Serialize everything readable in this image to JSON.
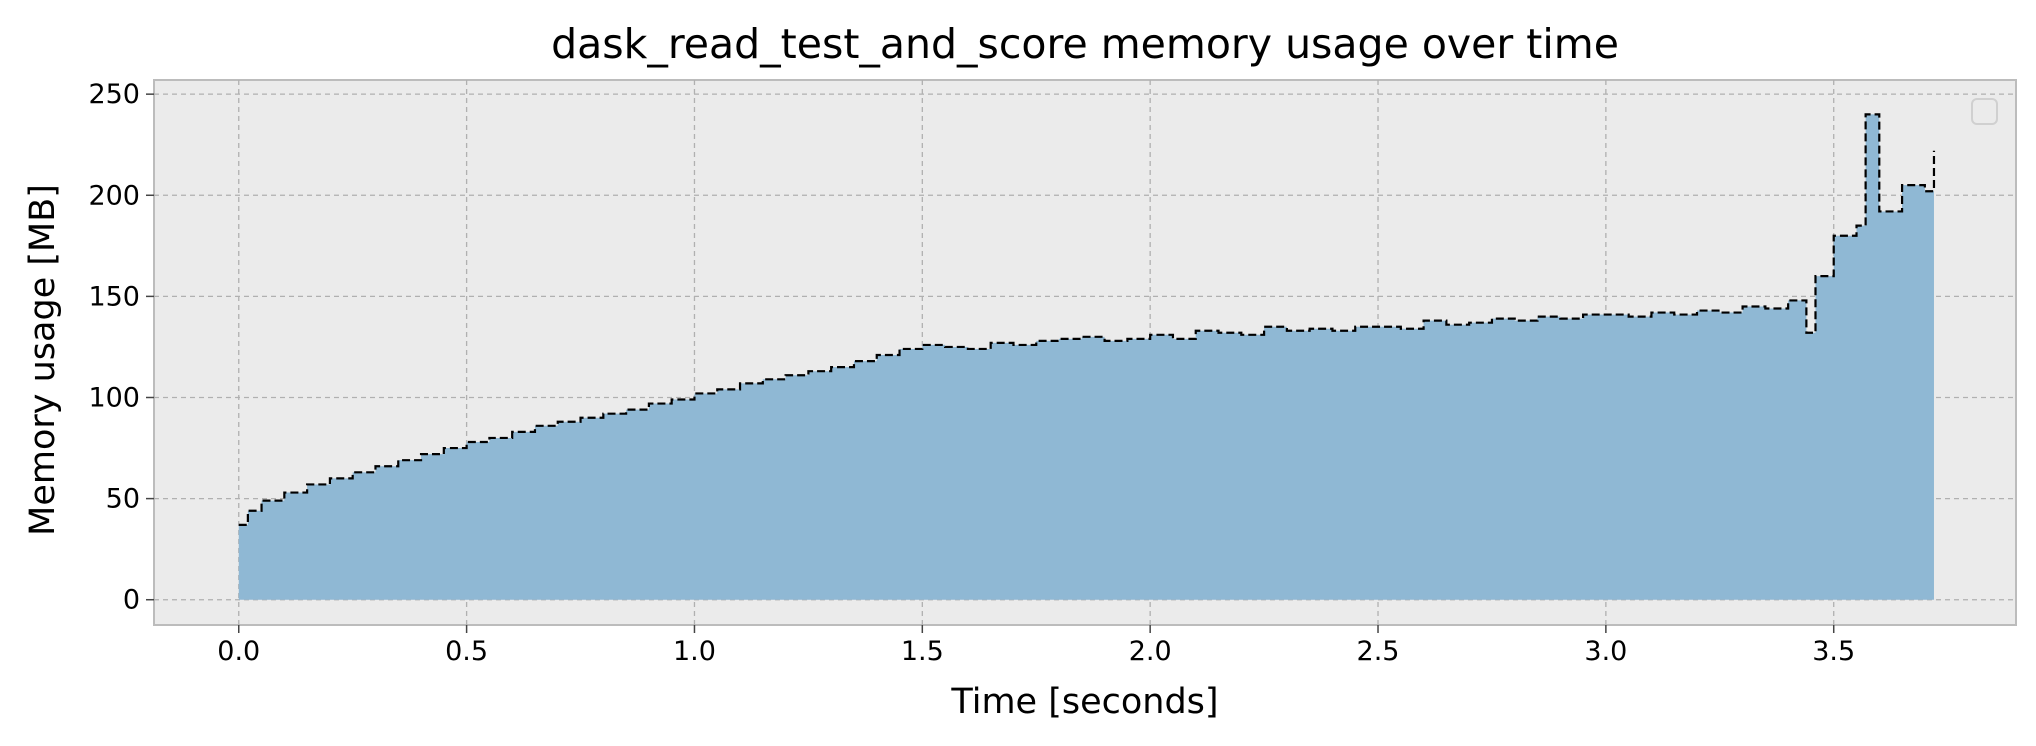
{
  "chart_data": {
    "type": "area",
    "title": "dask_read_test_and_score memory usage over time",
    "xlabel": "Time [seconds]",
    "ylabel": "Memory usage [MB]",
    "xlim": [
      -0.186,
      3.9
    ],
    "ylim": [
      -12.5,
      257
    ],
    "xticks": [
      "0.0",
      "0.5",
      "1.0",
      "1.5",
      "2.0",
      "2.5",
      "3.0",
      "3.5"
    ],
    "yticks": [
      "0",
      "50",
      "100",
      "150",
      "200",
      "250"
    ],
    "grid": true,
    "legend": "top-right (empty)",
    "colors": {
      "fill": "#8fb8d4",
      "line": "#000000",
      "background": "#ebebeb",
      "grid": "#b0b0b0",
      "frame": "#bcbcbc"
    },
    "series": [
      {
        "x": [
          0.0,
          0.02,
          0.05,
          0.1,
          0.15,
          0.2,
          0.25,
          0.3,
          0.35,
          0.4,
          0.45,
          0.5,
          0.55,
          0.6,
          0.65,
          0.7,
          0.75,
          0.8,
          0.85,
          0.9,
          0.95,
          1.0,
          1.05,
          1.1,
          1.15,
          1.2,
          1.25,
          1.3,
          1.35,
          1.4,
          1.45,
          1.5,
          1.55,
          1.6,
          1.65,
          1.7,
          1.75,
          1.8,
          1.85,
          1.9,
          1.95,
          2.0,
          2.05,
          2.1,
          2.15,
          2.2,
          2.25,
          2.3,
          2.35,
          2.4,
          2.45,
          2.5,
          2.55,
          2.6,
          2.65,
          2.7,
          2.75,
          2.8,
          2.85,
          2.9,
          2.95,
          3.0,
          3.05,
          3.1,
          3.15,
          3.2,
          3.25,
          3.3,
          3.35,
          3.4,
          3.44,
          3.46,
          3.5,
          3.55,
          3.57,
          3.6,
          3.65,
          3.7,
          3.72
        ],
        "y": [
          37,
          44,
          49,
          53,
          57,
          60,
          63,
          66,
          69,
          72,
          75,
          78,
          80,
          83,
          86,
          88,
          90,
          92,
          94,
          97,
          99,
          102,
          104,
          107,
          109,
          111,
          113,
          115,
          118,
          121,
          124,
          126,
          125,
          124,
          127,
          126,
          128,
          129,
          130,
          128,
          129,
          131,
          129,
          133,
          132,
          131,
          135,
          133,
          134,
          133,
          135,
          135,
          134,
          138,
          136,
          137,
          139,
          138,
          140,
          139,
          141,
          141,
          140,
          142,
          141,
          143,
          142,
          145,
          144,
          148,
          132,
          160,
          180,
          185,
          240,
          192,
          205,
          202,
          222
        ]
      }
    ]
  }
}
